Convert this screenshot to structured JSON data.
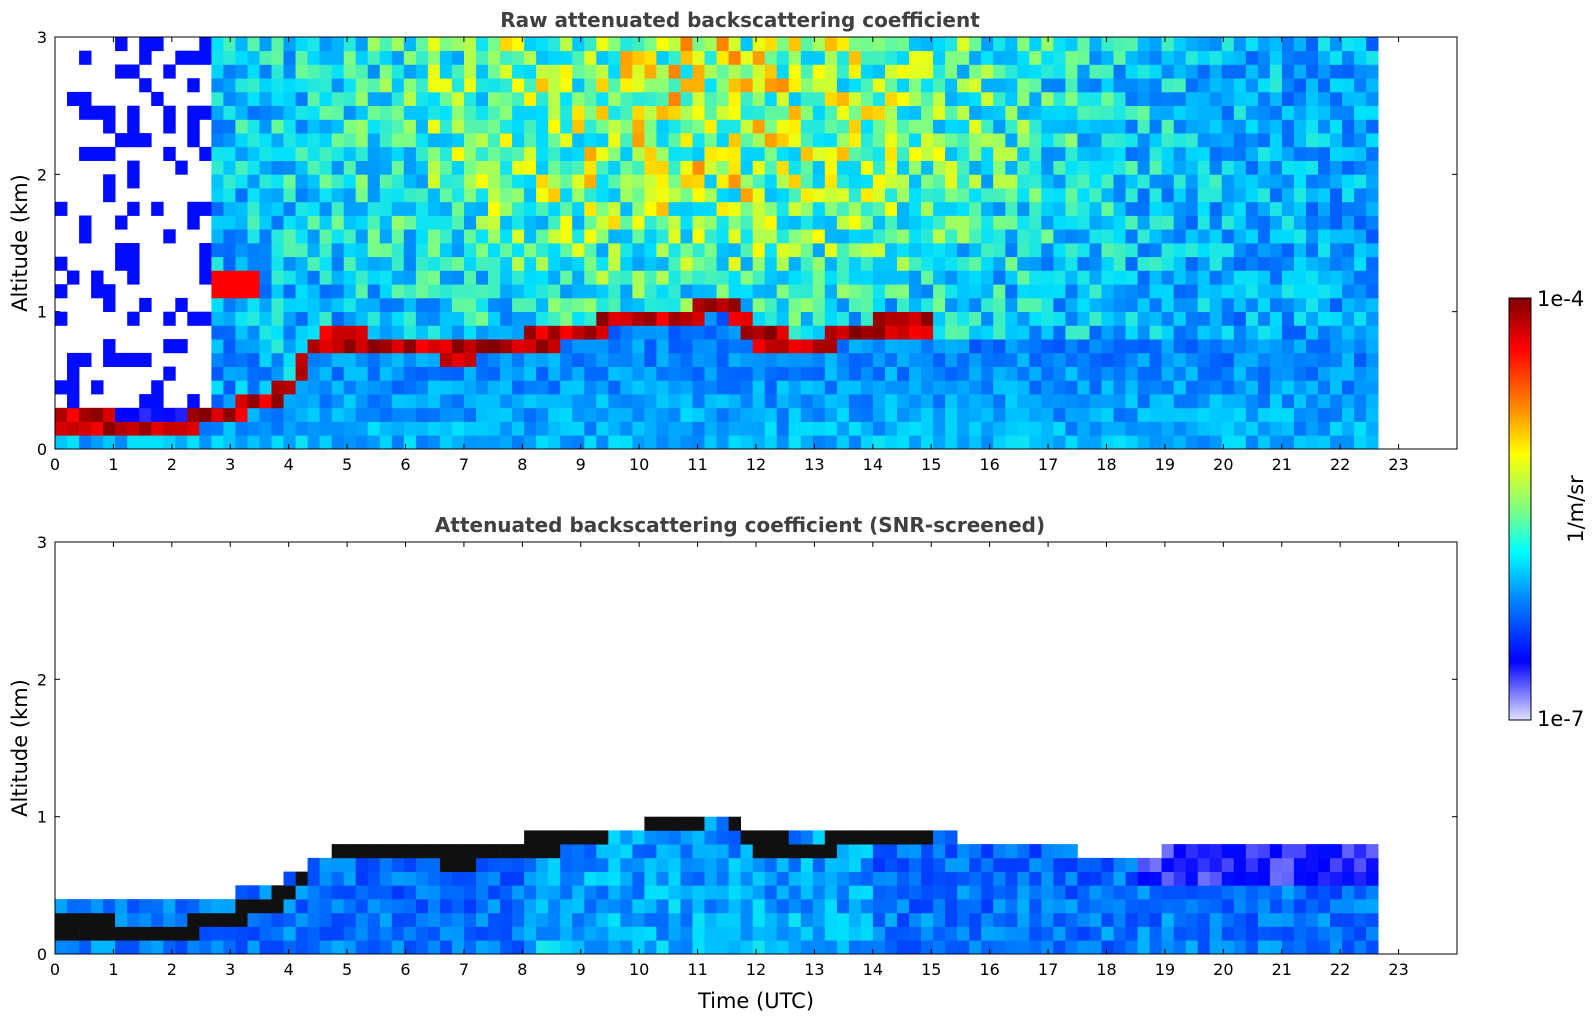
{
  "chart_data": [
    {
      "type": "heatmap",
      "title": "Raw attenuated backscattering coefficient",
      "xlabel": "",
      "ylabel": "Altitude (km)",
      "xlim": [
        0,
        24
      ],
      "ylim": [
        0,
        3
      ],
      "x_ticks": [
        "0",
        "1",
        "2",
        "3",
        "4",
        "5",
        "6",
        "7",
        "8",
        "9",
        "10",
        "11",
        "12",
        "13",
        "14",
        "15",
        "16",
        "17",
        "18",
        "19",
        "20",
        "21",
        "22",
        "23"
      ],
      "y_ticks": [
        "0",
        "1",
        "2",
        "3"
      ],
      "data_end_time": 22.65,
      "layer_top_km": [
        [
          0.0,
          0.22
        ],
        [
          1.0,
          0.2
        ],
        [
          2.0,
          0.17
        ],
        [
          2.6,
          0.25
        ],
        [
          3.0,
          0.3
        ],
        [
          4.0,
          0.45
        ],
        [
          4.5,
          0.8
        ],
        [
          5.0,
          0.82
        ],
        [
          6.0,
          0.75
        ],
        [
          7.0,
          0.72
        ],
        [
          8.0,
          0.8
        ],
        [
          9.0,
          0.85
        ],
        [
          10.0,
          1.0
        ],
        [
          11.0,
          1.0
        ],
        [
          11.5,
          1.1
        ],
        [
          12.0,
          0.82
        ],
        [
          13.0,
          0.78
        ],
        [
          14.0,
          0.9
        ],
        [
          14.5,
          0.92
        ],
        [
          15.0,
          0.9
        ]
      ],
      "elevated_layer": {
        "time_range": [
          2.65,
          3.6
        ],
        "altitude_km": 1.2
      }
    },
    {
      "type": "heatmap",
      "title": "Attenuated backscattering coefficient (SNR-screened)",
      "xlabel": "Time (UTC)",
      "ylabel": "Altitude (km)",
      "xlim": [
        0,
        24
      ],
      "ylim": [
        0,
        3
      ],
      "x_ticks": [
        "0",
        "1",
        "2",
        "3",
        "4",
        "5",
        "6",
        "7",
        "8",
        "9",
        "10",
        "11",
        "12",
        "13",
        "14",
        "15",
        "16",
        "17",
        "18",
        "19",
        "20",
        "21",
        "22",
        "23"
      ],
      "y_ticks": [
        "0",
        "1",
        "2",
        "3"
      ],
      "data_end_time": 22.65,
      "screened_top_km": [
        [
          0.0,
          0.4
        ],
        [
          2.0,
          0.35
        ],
        [
          4.0,
          0.55
        ],
        [
          5.0,
          0.82
        ],
        [
          7.0,
          0.82
        ],
        [
          9.0,
          0.88
        ],
        [
          11.0,
          1.0
        ],
        [
          13.0,
          0.85
        ],
        [
          15.0,
          0.88
        ],
        [
          16.0,
          0.82
        ],
        [
          18.0,
          0.72
        ],
        [
          19.0,
          0.75
        ],
        [
          20.0,
          0.85
        ],
        [
          22.65,
          0.8
        ]
      ]
    }
  ],
  "colorbar": {
    "label": "1/m/sr",
    "max_label": "1e-4",
    "min_label": "1e-7",
    "scale": "log",
    "colormap": [
      "#7f0000",
      "#ff0000",
      "#ff8000",
      "#ffff00",
      "#80ff80",
      "#00ffff",
      "#0080ff",
      "#0000ff",
      "#e0e0ff"
    ]
  }
}
